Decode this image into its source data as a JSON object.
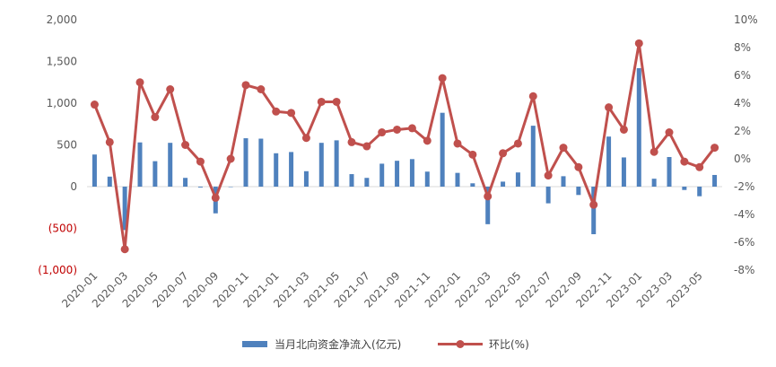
{
  "chart_data": {
    "type": "bar",
    "title": "",
    "xlabel": "",
    "ylabel": "",
    "grid": false,
    "legend_position": "bottom",
    "categories": [
      "2020-01",
      "2020-02",
      "2020-03",
      "2020-04",
      "2020-05",
      "2020-06",
      "2020-07",
      "2020-08",
      "2020-09",
      "2020-10",
      "2020-11",
      "2020-12",
      "2021-01",
      "2021-02",
      "2021-03",
      "2021-04",
      "2021-05",
      "2021-06",
      "2021-07",
      "2021-08",
      "2021-09",
      "2021-10",
      "2021-11",
      "2021-12",
      "2022-01",
      "2022-02",
      "2022-03",
      "2022-04",
      "2022-05",
      "2022-06",
      "2022-07",
      "2022-08",
      "2022-09",
      "2022-10",
      "2022-11",
      "2022-12",
      "2023-01",
      "2023-02",
      "2023-03",
      "2023-04",
      "2023-05",
      "2023-06"
    ],
    "x_tick_labels": [
      "2020-01",
      "2020-03",
      "2020-05",
      "2020-07",
      "2020-09",
      "2020-11",
      "2021-01",
      "2021-03",
      "2021-05",
      "2021-07",
      "2021-09",
      "2021-11",
      "2022-01",
      "2022-03",
      "2022-05",
      "2022-07",
      "2022-09",
      "2022-11",
      "2023-01",
      "2023-03",
      "2023-05"
    ],
    "y_left": {
      "ylim": [
        -1000,
        2000
      ],
      "ticks": [
        -1000,
        -500,
        0,
        500,
        1000,
        1500,
        2000
      ],
      "tick_labels": [
        "(1,000)",
        "(500)",
        "0",
        "500",
        "1,000",
        "1,500",
        "2,000"
      ],
      "negative_label_color": "#c00000"
    },
    "y_right": {
      "ylim": [
        -8,
        10
      ],
      "ticks": [
        -8,
        -6,
        -4,
        -2,
        0,
        2,
        4,
        6,
        8,
        10
      ],
      "tick_labels": [
        "-8%",
        "-6%",
        "-4%",
        "-2%",
        "0%",
        "2%",
        "4%",
        "6%",
        "8%",
        "10%"
      ]
    },
    "series": [
      {
        "name": "当月北向资金净流入(亿元)",
        "type": "bar",
        "axis": "left",
        "color": "#4f81bd",
        "values": [
          385,
          120,
          -520,
          530,
          305,
          525,
          105,
          -10,
          -320,
          0,
          580,
          575,
          400,
          415,
          185,
          525,
          555,
          150,
          105,
          275,
          310,
          330,
          180,
          885,
          165,
          40,
          -450,
          60,
          170,
          730,
          -200,
          125,
          -100,
          -570,
          600,
          350,
          1420,
          95,
          355,
          -40,
          -115,
          140
        ]
      },
      {
        "name": "环比(%)",
        "type": "line",
        "axis": "right",
        "color": "#c0504d",
        "values": [
          3.9,
          1.2,
          -6.5,
          5.5,
          3.0,
          5.0,
          1.0,
          -0.2,
          -2.8,
          0.0,
          5.3,
          5.0,
          3.4,
          3.3,
          1.5,
          4.1,
          4.1,
          1.2,
          0.9,
          1.9,
          2.1,
          2.2,
          1.3,
          5.8,
          1.1,
          0.3,
          -2.7,
          0.4,
          1.1,
          4.5,
          -1.2,
          0.8,
          -0.6,
          -3.3,
          3.7,
          2.1,
          8.3,
          0.5,
          1.9,
          -0.2,
          -0.6,
          0.8
        ]
      }
    ]
  },
  "legend": {
    "bar_label": "当月北向资金净流入(亿元)",
    "line_label": "环比(%)"
  }
}
